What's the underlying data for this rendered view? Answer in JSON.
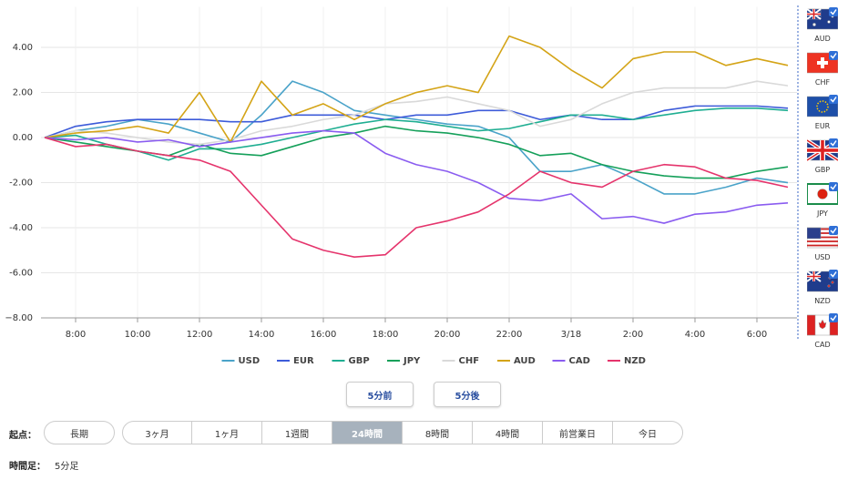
{
  "chart_data": {
    "type": "line",
    "x": [
      null,
      "8:00",
      null,
      "10:00",
      null,
      "12:00",
      null,
      "14:00",
      null,
      "16:00",
      null,
      "18:00",
      null,
      "20:00",
      null,
      "22:00",
      null,
      "3/18",
      null,
      "2:00",
      null,
      "4:00",
      null,
      "6:00",
      null
    ],
    "ylim": [
      -8,
      5.8
    ],
    "yticks": [
      {
        "value": 4,
        "label": "4.00"
      },
      {
        "value": 2,
        "label": "2.00"
      },
      {
        "value": 0,
        "label": "0.00"
      },
      {
        "value": -2,
        "label": "-2.00"
      },
      {
        "value": -4,
        "label": "-4.00"
      },
      {
        "value": -6,
        "label": "-6.00"
      },
      {
        "value": -8,
        "label": "−8.00"
      }
    ],
    "grid": true,
    "series": [
      {
        "name": "USD",
        "color": "#4aa3c9",
        "values": [
          0,
          0.3,
          0.5,
          0.8,
          0.6,
          0.2,
          -0.2,
          1.0,
          2.5,
          2.0,
          1.2,
          1.0,
          0.8,
          0.6,
          0.5,
          0,
          -1.5,
          -1.5,
          -1.2,
          -1.8,
          -2.5,
          -2.5,
          -2.2,
          -1.8,
          -2.0
        ]
      },
      {
        "name": "EUR",
        "color": "#3d5bd9",
        "values": [
          0,
          0.5,
          0.7,
          0.8,
          0.8,
          0.8,
          0.7,
          0.7,
          1.0,
          1.0,
          1.0,
          0.8,
          1.0,
          1.0,
          1.2,
          1.2,
          0.8,
          1.0,
          0.8,
          0.8,
          1.2,
          1.4,
          1.4,
          1.4,
          1.3
        ]
      },
      {
        "name": "GBP",
        "color": "#1fae92",
        "values": [
          0,
          0.1,
          -0.3,
          -0.6,
          -1.0,
          -0.5,
          -0.5,
          -0.3,
          0,
          0.3,
          0.6,
          0.8,
          0.7,
          0.5,
          0.3,
          0.4,
          0.7,
          1.0,
          1.0,
          0.8,
          1.0,
          1.2,
          1.3,
          1.3,
          1.2
        ]
      },
      {
        "name": "JPY",
        "color": "#15a05a",
        "values": [
          0,
          -0.2,
          -0.4,
          -0.6,
          -0.8,
          -0.3,
          -0.7,
          -0.8,
          -0.4,
          0,
          0.2,
          0.5,
          0.3,
          0.2,
          0,
          -0.3,
          -0.8,
          -0.7,
          -1.2,
          -1.5,
          -1.7,
          -1.8,
          -1.8,
          -1.5,
          -1.3
        ]
      },
      {
        "name": "CHF",
        "color": "#d9d9d9",
        "values": [
          0,
          0.3,
          0.2,
          0,
          -0.2,
          -0.3,
          -0.1,
          0.3,
          0.5,
          0.8,
          1.0,
          1.5,
          1.6,
          1.8,
          1.5,
          1.2,
          0.5,
          0.8,
          1.5,
          2.0,
          2.2,
          2.2,
          2.2,
          2.5,
          2.3
        ]
      },
      {
        "name": "AUD",
        "color": "#d4a417",
        "values": [
          0,
          0.2,
          0.3,
          0.5,
          0.2,
          2.0,
          -0.2,
          2.5,
          1.0,
          1.5,
          0.8,
          1.5,
          2.0,
          2.3,
          2.0,
          4.5,
          4.0,
          3.0,
          2.2,
          3.5,
          3.8,
          3.8,
          3.2,
          3.5,
          3.2
        ]
      },
      {
        "name": "CAD",
        "color": "#8a5cf0",
        "values": [
          0,
          -0.1,
          0,
          -0.2,
          -0.1,
          -0.4,
          -0.2,
          0,
          0.2,
          0.3,
          0.2,
          -0.7,
          -1.2,
          -1.5,
          -2.0,
          -2.7,
          -2.8,
          -2.5,
          -3.6,
          -3.5,
          -3.8,
          -3.4,
          -3.3,
          -3.0,
          -2.9
        ]
      },
      {
        "name": "NZD",
        "color": "#e5346c",
        "values": [
          0,
          -0.4,
          -0.3,
          -0.6,
          -0.8,
          -1.0,
          -1.5,
          -3.0,
          -4.5,
          -5.0,
          -5.3,
          -5.2,
          -4.0,
          -3.7,
          -3.3,
          -2.5,
          -1.5,
          -2.0,
          -2.2,
          -1.5,
          -1.2,
          -1.3,
          -1.8,
          -1.9,
          -2.2
        ]
      }
    ]
  },
  "currency_toggles": [
    "AUD",
    "CHF",
    "EUR",
    "GBP",
    "JPY",
    "USD",
    "NZD",
    "CAD"
  ],
  "nav_buttons": [
    "5分前",
    "5分後"
  ],
  "start_label": "起点：",
  "long_term": "長期",
  "start_options": [
    "3ヶ月",
    "1ヶ月",
    "1週間",
    "24時間",
    "8時間",
    "4時間",
    "前営業日",
    "今日"
  ],
  "selected_start": "24時間",
  "timeframe_label": "時間足：",
  "timeframe_value": "5分足"
}
